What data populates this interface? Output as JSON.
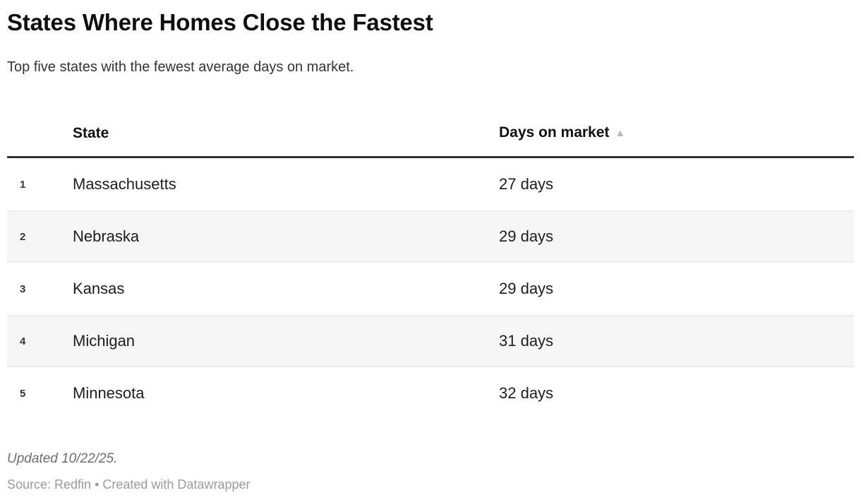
{
  "header": {
    "title": "States Where Homes Close the Fastest",
    "subtitle": "Top five states with the fewest average days on market."
  },
  "table": {
    "columns": {
      "state": "State",
      "days": "Days on market"
    },
    "sort_indicator": "▲",
    "rows": [
      {
        "rank": "1",
        "state": "Massachusetts",
        "days": "27 days"
      },
      {
        "rank": "2",
        "state": "Nebraska",
        "days": "29 days"
      },
      {
        "rank": "3",
        "state": "Kansas",
        "days": "29 days"
      },
      {
        "rank": "4",
        "state": "Michigan",
        "days": "31 days"
      },
      {
        "rank": "5",
        "state": "Minnesota",
        "days": "32 days"
      }
    ]
  },
  "footer": {
    "updated": "Updated 10/22/25.",
    "source": "Source: Redfin • Created with Datawrapper"
  },
  "colors": {
    "stripe_background": "#f6f6f6",
    "stripe_edge": "#ececec",
    "header_border": "#333333",
    "sort_arrow": "#bbbbbb",
    "body_text": "#1d1d1d",
    "updated_text": "#6e6e6e",
    "source_text": "#9b9b9b"
  },
  "chart_data": {
    "type": "table",
    "title": "States Where Homes Close the Fastest",
    "subtitle": "Top five states with the fewest average days on market.",
    "columns": [
      "State",
      "Days on market"
    ],
    "rows": [
      [
        "Massachusetts",
        27
      ],
      [
        "Nebraska",
        29
      ],
      [
        "Kansas",
        29
      ],
      [
        "Michigan",
        31
      ],
      [
        "Minnesota",
        32
      ]
    ],
    "units": "days",
    "sort": {
      "column": "Days on market",
      "direction": "ascending"
    },
    "notes": "Updated 10/22/25.",
    "source": "Source: Redfin • Created with Datawrapper"
  }
}
